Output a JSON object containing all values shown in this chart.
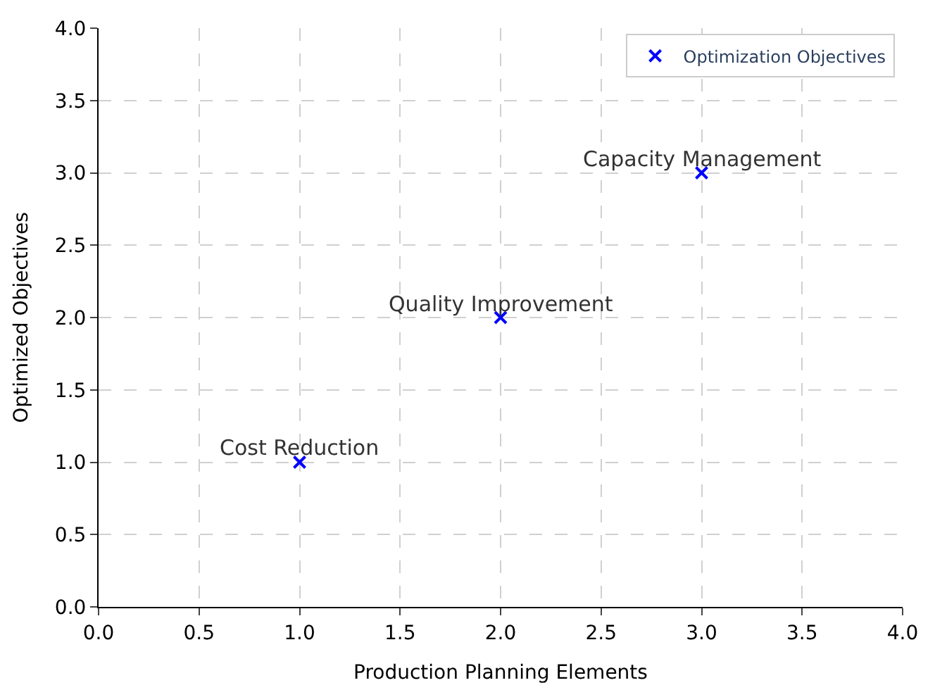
{
  "chart_data": {
    "type": "scatter",
    "xlabel": "Production Planning Elements",
    "ylabel": "Optimized Objectives",
    "x": [
      1,
      2,
      3
    ],
    "series": [
      {
        "name": "Optimization Objectives",
        "color": "#0000ff",
        "values": [
          1,
          2,
          3
        ]
      }
    ],
    "annotations": [
      {
        "text": "Cost Reduction",
        "x": 1,
        "y": 1
      },
      {
        "text": "Quality Improvement",
        "x": 2,
        "y": 2
      },
      {
        "text": "Capacity Management",
        "x": 3,
        "y": 3
      }
    ],
    "xlim": [
      0,
      4
    ],
    "ylim": [
      0,
      4
    ],
    "xticks": [
      {
        "value": 0,
        "label": "0.0"
      },
      {
        "value": 0.5,
        "label": "0.5"
      },
      {
        "value": 1,
        "label": "1.0"
      },
      {
        "value": 1.5,
        "label": "1.5"
      },
      {
        "value": 2,
        "label": "2.0"
      },
      {
        "value": 2.5,
        "label": "2.5"
      },
      {
        "value": 3,
        "label": "3.0"
      },
      {
        "value": 3.5,
        "label": "3.5"
      },
      {
        "value": 4,
        "label": "4.0"
      }
    ],
    "yticks": [
      {
        "value": 0,
        "label": "0.0"
      },
      {
        "value": 0.5,
        "label": "0.5"
      },
      {
        "value": 1,
        "label": "1.0"
      },
      {
        "value": 1.5,
        "label": "1.5"
      },
      {
        "value": 2,
        "label": "2.0"
      },
      {
        "value": 2.5,
        "label": "2.5"
      },
      {
        "value": 3,
        "label": "3.0"
      },
      {
        "value": 3.5,
        "label": "3.5"
      },
      {
        "value": 4,
        "label": "4.0"
      }
    ],
    "grid": true,
    "legend": "top right",
    "marker": "cross"
  }
}
